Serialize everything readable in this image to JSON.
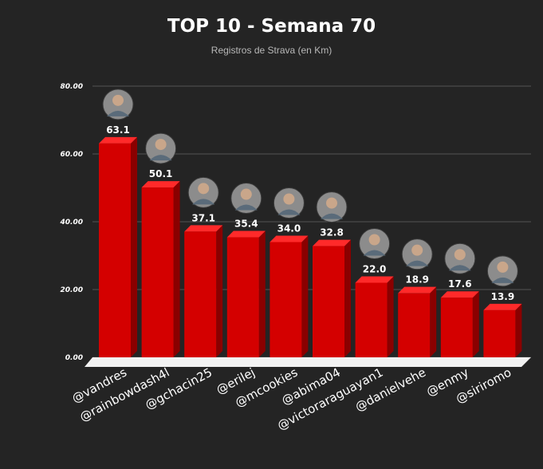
{
  "chart_data": {
    "type": "bar",
    "title": "TOP 10 - Semana 70",
    "subtitle": "Registros de Strava (en Km)",
    "categories": [
      "@vandres",
      "@rainbowdash4l",
      "@gchacin25",
      "@erilej",
      "@mcookies",
      "@abima04",
      "@victoraraguayan1",
      "@danielvehe",
      "@enmy",
      "@siriromo"
    ],
    "values": [
      63.1,
      50.1,
      37.1,
      35.4,
      34.0,
      32.8,
      22.0,
      18.9,
      17.6,
      13.9
    ],
    "value_labels": [
      "63.1",
      "50.1",
      "37.1",
      "35.4",
      "34.0",
      "32.8",
      "22.0",
      "18.9",
      "17.6",
      "13.9"
    ],
    "y_ticks": [
      "0.00",
      "20.00",
      "40.00",
      "60.00",
      "80.00"
    ],
    "y_tick_values": [
      0,
      20,
      40,
      60,
      80
    ],
    "ylim": [
      0,
      80
    ],
    "grid": true,
    "legend": "none",
    "bar_color": "#d40000",
    "bar_side_color": "#8a0000",
    "bar_top_color": "#ff2a2a"
  }
}
